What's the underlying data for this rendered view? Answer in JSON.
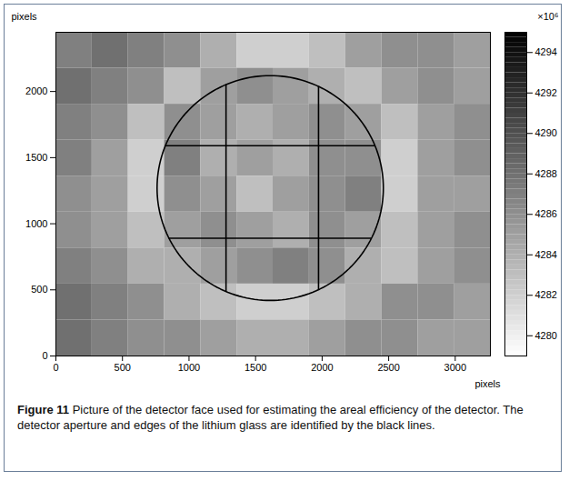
{
  "chart_data": {
    "type": "heatmap",
    "x_label": "pixels",
    "y_label": "pixels",
    "xlim": [
      0,
      3264
    ],
    "ylim": [
      0,
      2448
    ],
    "xticks": [
      0,
      500,
      1000,
      1500,
      2000,
      2500,
      3000
    ],
    "yticks": [
      0,
      500,
      1000,
      1500,
      2000
    ],
    "x_edges": [
      0,
      272,
      544,
      816,
      1088,
      1360,
      1632,
      1904,
      2176,
      2448,
      2720,
      2992,
      3264
    ],
    "y_edges": [
      2448,
      2176,
      1904,
      1632,
      1360,
      1088,
      816,
      544,
      272,
      0
    ],
    "cells": [
      [
        4287,
        4288,
        4287,
        4286,
        4284,
        4282,
        4282,
        4283,
        4285,
        4286,
        4286,
        4285
      ],
      [
        4288,
        4287,
        4286,
        4283,
        4285,
        4286,
        4285,
        4284,
        4283,
        4285,
        4286,
        4285
      ],
      [
        4287,
        4286,
        4283,
        4286,
        4285,
        4284,
        4285,
        4286,
        4285,
        4283,
        4285,
        4286
      ],
      [
        4287,
        4285,
        4282,
        4287,
        4284,
        4285,
        4284,
        4286,
        4286,
        4282,
        4285,
        4286
      ],
      [
        4286,
        4285,
        4282,
        4286,
        4285,
        4283,
        4285,
        4286,
        4287,
        4282,
        4285,
        4285
      ],
      [
        4286,
        4285,
        4283,
        4285,
        4286,
        4285,
        4284,
        4286,
        4285,
        4283,
        4285,
        4286
      ],
      [
        4287,
        4286,
        4284,
        4284,
        4285,
        4286,
        4287,
        4286,
        4284,
        4283,
        4285,
        4286
      ],
      [
        4288,
        4287,
        4286,
        4284,
        4283,
        4282,
        4282,
        4283,
        4284,
        4286,
        4286,
        4285
      ],
      [
        4288,
        4287,
        4286,
        4286,
        4285,
        4284,
        4284,
        4285,
        4286,
        4286,
        4285,
        4285
      ]
    ],
    "colorbar": {
      "label": "×10⁶",
      "range": [
        4279,
        4295
      ],
      "ticks": [
        4280,
        4282,
        4284,
        4286,
        4288,
        4290,
        4292,
        4294
      ]
    },
    "aperture": {
      "center": [
        1610,
        1270
      ],
      "radius": 850
    },
    "glass_edges": {
      "x": [
        1278,
        1973
      ],
      "y": [
        890,
        1590
      ]
    },
    "caption": {
      "label": "Figure 11",
      "text": "Picture of the detector face used for estimating the areal efficiency of the detector. The detector aperture and edges of the lithium glass are identified by the black lines."
    }
  }
}
